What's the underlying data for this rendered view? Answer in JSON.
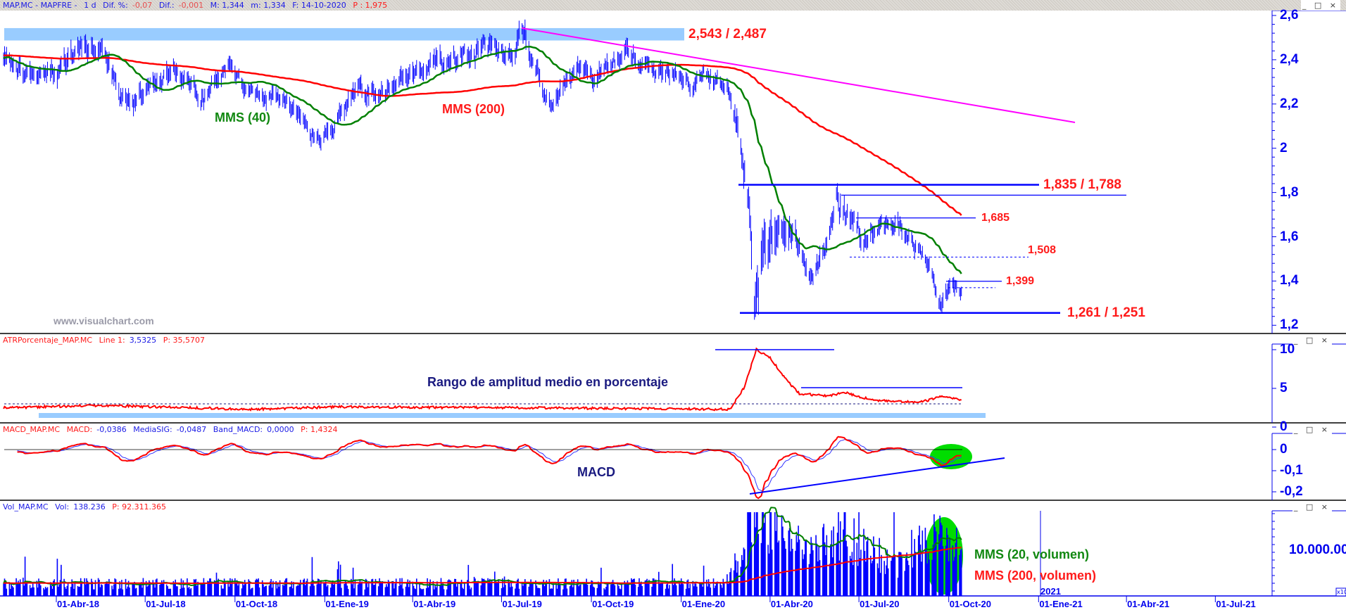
{
  "header": {
    "symbol": "MAP.MC - MAPFRE -",
    "period": "1 d",
    "dif_pct_label": "Dif. %:",
    "dif_pct": "-0,07",
    "dif_label": "Dif.:",
    "dif": "-0,001",
    "max_label": "M: 1,344",
    "min_label": "m: 1,334",
    "date_label": "F: 14-10-2020",
    "p_label": "P : 1,975"
  },
  "panels": {
    "atr": {
      "name": "ATRPorcentaje_MAP.MC",
      "line_label": "Line 1:",
      "line_value": "3,5325",
      "p": "P: 35,5707"
    },
    "macd": {
      "name": "MACD_MAP.MC",
      "macd_label": "MACD:",
      "macd_value": "-0,0386",
      "sig_label": "MediaSIG:",
      "sig_value": "-0,0487",
      "band_label": "Band_MACD:",
      "band_value": "0,0000",
      "p": "P: 1,4324"
    },
    "vol": {
      "name": "Vol_MAP.MC",
      "vol_label": "Vol:",
      "vol_value": "138.236",
      "p": "P: 92.311.365"
    }
  },
  "window_controls": "_ □ ×",
  "annotations": {
    "resistance_top": "2,543 / 2,487",
    "mms40": "MMS (40)",
    "mms200": "MMS (200)",
    "level_1835": "1,835 / 1,788",
    "level_1685": "1,685",
    "level_1508": "1,508",
    "level_1399": "1,399",
    "level_1261": "1,261 / 1,251",
    "watermark": "www.visualchart.com",
    "atr_title": "Rango de amplitud medio en porcentaje",
    "macd_title": "MACD",
    "vol_mms20": "MMS (20, volumen)",
    "vol_mms200": "MMS (200, volumen)",
    "year_marker": "2021",
    "vol_multiplier": "x10"
  },
  "colors": {
    "price": "#0000ff",
    "mms40": "#008000",
    "mms200": "#ff0000",
    "trendline": "#ff00ff",
    "axis": "#0000ee",
    "band": "#99ccff",
    "highlight": "#00dd00"
  },
  "chart_data": [
    {
      "type": "line",
      "title": "MAP.MC - MAPFRE - 1 d",
      "subtype": "ohlc bars with moving averages",
      "y_ticks": [
        "2,6",
        "2,4",
        "2,2",
        "2",
        "1,8",
        "1,6",
        "1,4",
        "1,2"
      ],
      "ylim": [
        1.2,
        2.6
      ],
      "x_ticks": [
        "01-Abr-18",
        "01-Jul-18",
        "01-Oct-18",
        "01-Ene-19",
        "01-Abr-19",
        "01-Jul-19",
        "01-Oct-19",
        "01-Ene-20",
        "01-Abr-20",
        "01-Jul-20",
        "01-Oct-20",
        "01-Ene-21",
        "01-Abr-21",
        "01-Jul-21"
      ],
      "close_keypoints": [
        [
          "2018-02-06",
          2.38
        ],
        [
          "2018-02-20",
          2.33
        ],
        [
          "2018-03-10",
          2.28
        ],
        [
          "2018-04-10",
          2.38
        ],
        [
          "2018-05-10",
          2.47
        ],
        [
          "2018-05-25",
          2.4
        ],
        [
          "2018-06-05",
          2.2
        ],
        [
          "2018-06-25",
          2.22
        ],
        [
          "2018-07-15",
          2.32
        ],
        [
          "2018-08-10",
          2.33
        ],
        [
          "2018-09-01",
          2.25
        ],
        [
          "2018-09-28",
          2.4
        ],
        [
          "2018-10-20",
          2.22
        ],
        [
          "2018-11-20",
          2.28
        ],
        [
          "2018-12-10",
          2.15
        ],
        [
          "2018-12-27",
          2.07
        ],
        [
          "2019-01-20",
          2.2
        ],
        [
          "2019-02-15",
          2.28
        ],
        [
          "2019-03-15",
          2.27
        ],
        [
          "2019-04-15",
          2.37
        ],
        [
          "2019-05-15",
          2.4
        ],
        [
          "2019-06-10",
          2.43
        ],
        [
          "2019-07-25",
          2.53
        ],
        [
          "2019-08-05",
          2.35
        ],
        [
          "2019-08-20",
          2.22
        ],
        [
          "2019-09-15",
          2.32
        ],
        [
          "2019-10-15",
          2.35
        ],
        [
          "2019-11-10",
          2.42
        ],
        [
          "2019-12-05",
          2.36
        ],
        [
          "2020-01-10",
          2.32
        ],
        [
          "2020-02-18",
          2.3
        ],
        [
          "2020-02-28",
          2.1
        ],
        [
          "2020-03-10",
          1.75
        ],
        [
          "2020-03-16",
          1.28
        ],
        [
          "2020-03-25",
          1.5
        ],
        [
          "2020-04-10",
          1.55
        ],
        [
          "2020-04-25",
          1.58
        ],
        [
          "2020-05-14",
          1.4
        ],
        [
          "2020-05-30",
          1.6
        ],
        [
          "2020-06-08",
          1.82
        ],
        [
          "2020-06-20",
          1.65
        ],
        [
          "2020-07-10",
          1.62
        ],
        [
          "2020-07-25",
          1.64
        ],
        [
          "2020-08-15",
          1.62
        ],
        [
          "2020-09-01",
          1.55
        ],
        [
          "2020-09-15",
          1.45
        ],
        [
          "2020-09-22",
          1.3
        ],
        [
          "2020-10-05",
          1.38
        ],
        [
          "2020-10-14",
          1.34
        ]
      ],
      "series": [
        {
          "name": "MMS (40)"
        },
        {
          "name": "MMS (200)"
        }
      ],
      "levels": [
        2.543,
        2.487,
        1.835,
        1.788,
        1.685,
        1.508,
        1.399,
        1.261,
        1.251
      ],
      "trendline": [
        [
          "2019-07-25",
          2.543
        ],
        [
          "2021-04-15",
          2.115
        ]
      ]
    },
    {
      "type": "line",
      "title": "ATRPorcentaje_MAP.MC",
      "y_ticks": [
        "10",
        "5",
        "0"
      ],
      "ylim": [
        0,
        10.5
      ],
      "keypoints": [
        [
          "2018-02-06",
          2.5
        ],
        [
          "2018-05-15",
          2.8
        ],
        [
          "2018-10-15",
          2.3
        ],
        [
          "2019-01-10",
          2.6
        ],
        [
          "2019-07-15",
          2.5
        ],
        [
          "2020-02-20",
          2.3
        ],
        [
          "2020-03-05",
          5
        ],
        [
          "2020-03-18",
          10
        ],
        [
          "2020-04-01",
          9
        ],
        [
          "2020-04-15",
          6.5
        ],
        [
          "2020-05-01",
          4.3
        ],
        [
          "2020-06-01",
          4
        ],
        [
          "2020-06-15",
          4.5
        ],
        [
          "2020-07-15",
          3.5
        ],
        [
          "2020-09-01",
          3.2
        ],
        [
          "2020-09-25",
          4
        ],
        [
          "2020-10-14",
          3.5
        ]
      ]
    },
    {
      "type": "line",
      "title": "MACD_MAP.MC",
      "y_ticks": [
        "0",
        "-0,1",
        "-0,2"
      ],
      "series": [
        {
          "name": "MACD"
        },
        {
          "name": "MediaSIG"
        }
      ]
    },
    {
      "type": "bar",
      "title": "Vol_MAP.MC",
      "y_ticks": [
        "10.000.00"
      ],
      "base_volume": 3200000,
      "volume_multiplier_keypoints": [
        [
          "2018-02-06",
          1
        ],
        [
          "2020-02-15",
          1
        ],
        [
          "2020-02-28",
          3
        ],
        [
          "2020-03-15",
          7
        ],
        [
          "2020-04-15",
          4.5
        ],
        [
          "2020-05-15",
          3.5
        ],
        [
          "2020-06-10",
          5.5
        ],
        [
          "2020-07-15",
          3.5
        ],
        [
          "2020-08-15",
          2.5
        ],
        [
          "2020-09-20",
          5.5
        ],
        [
          "2020-10-14",
          3.5
        ]
      ],
      "series": [
        {
          "name": "MMS (20, volumen)"
        },
        {
          "name": "MMS (200, volumen)"
        }
      ]
    }
  ]
}
